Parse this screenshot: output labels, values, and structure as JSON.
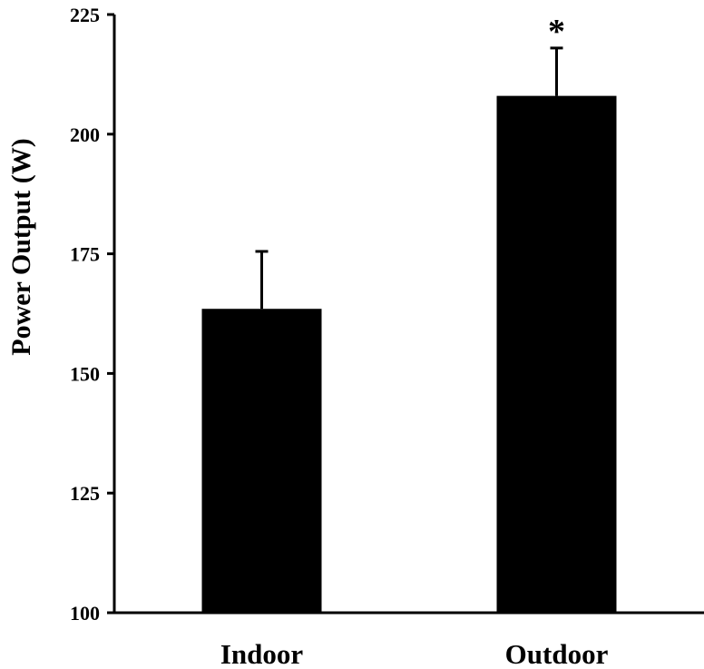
{
  "chart_data": {
    "type": "bar",
    "title": "",
    "xlabel": "",
    "ylabel": "Power Output (W)",
    "categories": [
      "Indoor",
      "Outdoor"
    ],
    "values": [
      163.5,
      208
    ],
    "error": [
      12,
      10
    ],
    "annotations": [
      "",
      "*"
    ],
    "ylim": [
      100,
      225
    ],
    "yticks": [
      100,
      125,
      150,
      175,
      200,
      225
    ],
    "grid": false,
    "legend": "none",
    "bar_color": "#000000"
  }
}
